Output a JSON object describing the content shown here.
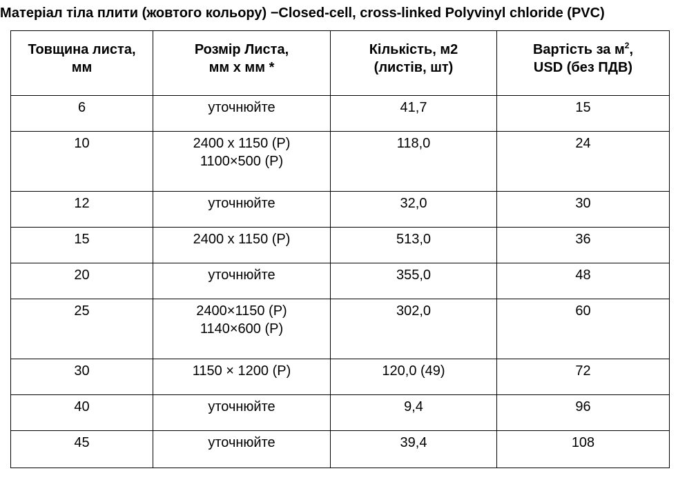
{
  "title": "Матеріал тіла плити (жовтого  кольору) −Closed-cell, cross-linked Polyvinyl chloride  (PVC)",
  "table": {
    "headers": [
      {
        "line1": "Товщина листа,",
        "line2": "мм"
      },
      {
        "line1": "Розмір Листа,",
        "line2": "мм х мм *"
      },
      {
        "line1": "Кількість, м2",
        "line2": "(листів, шт)"
      },
      {
        "line1": "Вартість за м",
        "sup": "2",
        "line1_end": ",",
        "line2": "USD (без ПДВ)"
      }
    ],
    "rows": [
      {
        "thickness": "6",
        "size": [
          "уточнюйте"
        ],
        "qty": "41,7",
        "price": "15"
      },
      {
        "thickness": "10",
        "size": [
          "2400 х 1150 (Р)",
          "1100×500 (Р)"
        ],
        "qty": "118,0",
        "price": "24"
      },
      {
        "thickness": "12",
        "size": [
          "уточнюйте"
        ],
        "qty": "32,0",
        "price": "30"
      },
      {
        "thickness": "15",
        "size": [
          "2400 х 1150 (Р)"
        ],
        "qty": "513,0",
        "price": "36"
      },
      {
        "thickness": "20",
        "size": [
          "уточнюйте"
        ],
        "qty": "355,0",
        "price": "48"
      },
      {
        "thickness": "25",
        "size": [
          "2400×1150 (Р)",
          "1140×600 (Р)"
        ],
        "qty": "302,0",
        "price": "60"
      },
      {
        "thickness": "30",
        "size": [
          "1150 × 1200 (Р)"
        ],
        "qty": "120,0 (49)",
        "price": "72"
      },
      {
        "thickness": "40",
        "size": [
          "уточнюйте"
        ],
        "qty": "9,4",
        "price": "96"
      },
      {
        "thickness": "45",
        "size": [
          "уточнюйте"
        ],
        "qty": "39,4",
        "price": "108"
      }
    ]
  }
}
